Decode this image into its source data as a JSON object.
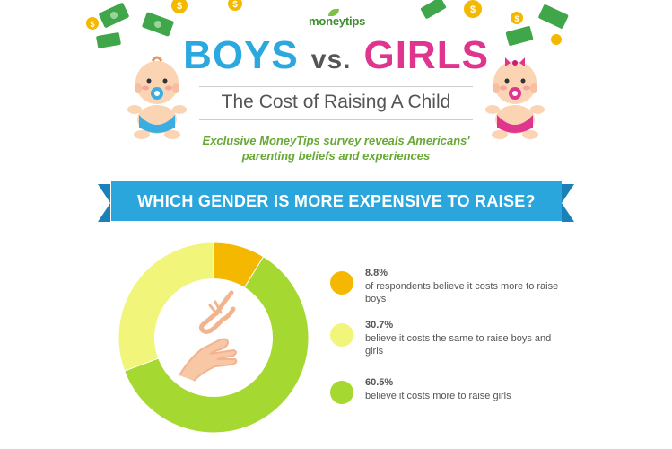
{
  "header": {
    "logo": "moneytips",
    "title_boys": "BOYS",
    "title_vs": "vs.",
    "title_girls": "GIRLS",
    "subtitle": "The Cost of Raising A Child",
    "tagline_line1": "Exclusive MoneyTips survey reveals Americans'",
    "tagline_line2": "parenting beliefs and experiences"
  },
  "banner": {
    "text": "WHICH GENDER IS MORE EXPENSIVE TO RAISE?"
  },
  "legend": [
    {
      "pct": "8.8%",
      "desc": "of respondents believe it costs more to raise boys"
    },
    {
      "pct": "30.7%",
      "desc": "believe it costs the same to raise boys and girls"
    },
    {
      "pct": "60.5%",
      "desc": "believe it costs more to raise girls"
    }
  ],
  "colors": {
    "boys_slice": "#f5b800",
    "same_slice": "#f1f57a",
    "girls_slice": "#a6d832",
    "boys_title": "#2ba8e0",
    "girls_title": "#e0358f",
    "banner": "#2aa6dd",
    "tagline": "#67a836"
  },
  "icons": [
    "dollar-bill-icon",
    "dollar-coin-icon",
    "baby-boy-illustration",
    "baby-girl-illustration",
    "reaching-hands-icon"
  ],
  "chart_data": {
    "type": "pie",
    "style": "donut",
    "categories": [
      "Costs more to raise boys",
      "Costs the same",
      "Costs more to raise girls"
    ],
    "values": [
      8.8,
      30.7,
      60.5
    ],
    "colors": [
      "#f5b800",
      "#f1f57a",
      "#a6d832"
    ],
    "title": "WHICH GENDER IS MORE EXPENSIVE TO RAISE?",
    "legend_position": "right",
    "unit": "%"
  }
}
